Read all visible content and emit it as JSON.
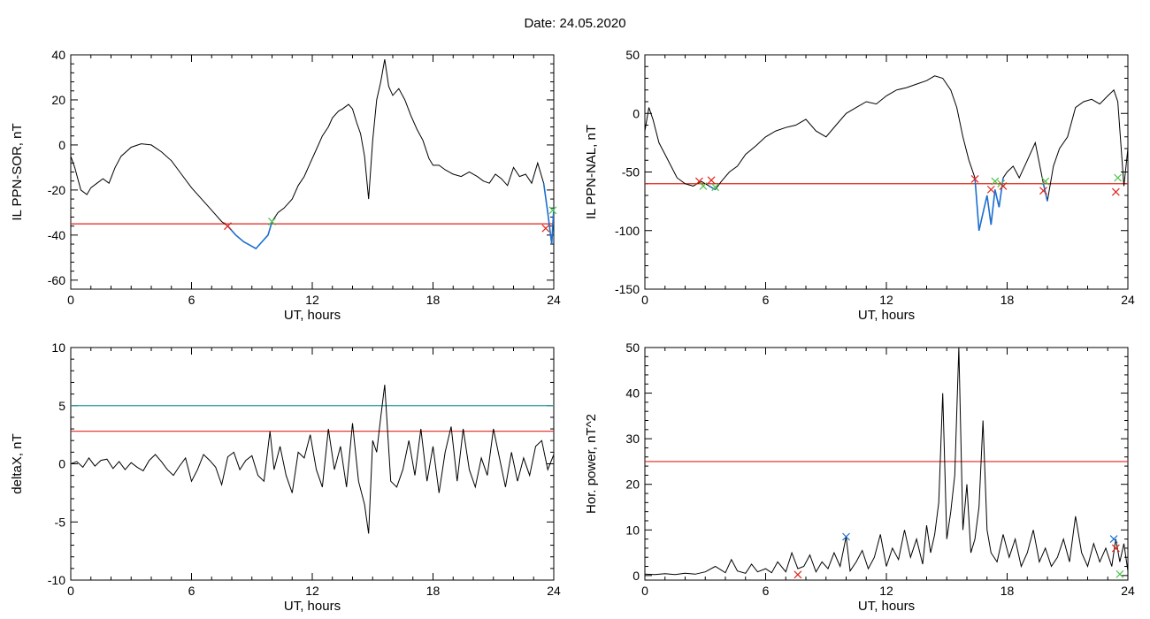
{
  "figure": {
    "title": "Date:  24.05.2020"
  },
  "colors": {
    "data_line": "#000000",
    "threshold_red": "#e0241b",
    "threshold_teal": "#2a9d9b",
    "segment_blue": "#1d6fd1",
    "marker_red": "#e0241b",
    "marker_green": "#4bc24b",
    "marker_blue": "#1d6fd1"
  },
  "chart_data": [
    {
      "type": "line",
      "xlabel": "UT, hours",
      "ylabel": "IL PPN-SOR, nT",
      "xlim": [
        0,
        24
      ],
      "ylim": [
        -64,
        40
      ],
      "xticks": [
        0,
        6,
        12,
        18,
        24
      ],
      "yticks": [
        40,
        20,
        0,
        -20,
        -40,
        -60
      ],
      "threshold_lines": [
        {
          "y": -35,
          "color": "red"
        }
      ],
      "series": [
        {
          "x": [
            0,
            0.2,
            0.5,
            0.8,
            1.0,
            1.3,
            1.6,
            1.9,
            2.2,
            2.5,
            3.0,
            3.5,
            4.0,
            4.5,
            5.0,
            5.5,
            6.0,
            6.5,
            7.0,
            7.5,
            7.8,
            8.2,
            8.6,
            9.0,
            9.2,
            9.5,
            9.8,
            10.0,
            10.3,
            10.6,
            11.0,
            11.3,
            11.6,
            11.9,
            12.2,
            12.5,
            12.8,
            13.0,
            13.3,
            13.5,
            13.8,
            14.0,
            14.2,
            14.4,
            14.6,
            14.8,
            15.0,
            15.2,
            15.4,
            15.6,
            15.8,
            16.0,
            16.3,
            16.6,
            16.9,
            17.2,
            17.5,
            17.8,
            18.0,
            18.3,
            18.6,
            19.0,
            19.4,
            19.8,
            20.2,
            20.5,
            20.8,
            21.1,
            21.4,
            21.7,
            22.0,
            22.3,
            22.6,
            22.9,
            23.2,
            23.5,
            23.7,
            23.9,
            24.0
          ],
          "y": [
            -5,
            -10,
            -20,
            -22,
            -19,
            -17,
            -15,
            -17,
            -10,
            -5,
            -1,
            0.5,
            0,
            -3,
            -7,
            -13,
            -19,
            -24,
            -29,
            -34,
            -36,
            -40,
            -43,
            -45,
            -46,
            -43,
            -40,
            -34,
            -30,
            -28,
            -24,
            -18,
            -14,
            -8,
            -2,
            4,
            8,
            12,
            15,
            16,
            18,
            16,
            10,
            5,
            -5,
            -24,
            2,
            20,
            28,
            38,
            26,
            22,
            25,
            20,
            13,
            7,
            2,
            -6,
            -9,
            -9,
            -11,
            -13,
            -14,
            -12,
            -14,
            -16,
            -17,
            -13,
            -15,
            -18,
            -10,
            -14,
            -13,
            -17,
            -8,
            -17,
            -30,
            -44,
            -28
          ]
        }
      ],
      "highlight_segments": [
        {
          "x_start": 7.8,
          "x_end": 10.0,
          "color": "blue"
        },
        {
          "x_start": 23.5,
          "x_end": 24.0,
          "color": "blue"
        }
      ],
      "markers": [
        {
          "x": 7.8,
          "y": -36,
          "color": "red"
        },
        {
          "x": 10.0,
          "y": -34,
          "color": "green"
        },
        {
          "x": 23.6,
          "y": -37,
          "color": "red"
        },
        {
          "x": 23.95,
          "y": -29,
          "color": "green"
        }
      ]
    },
    {
      "type": "line",
      "xlabel": "UT, hours",
      "ylabel": "IL PPN-NAL, nT",
      "xlim": [
        0,
        24
      ],
      "ylim": [
        -150,
        50
      ],
      "xticks": [
        0,
        6,
        12,
        18,
        24
      ],
      "yticks": [
        50,
        0,
        -50,
        -100,
        -150
      ],
      "threshold_lines": [
        {
          "y": -60,
          "color": "red"
        }
      ],
      "series": [
        {
          "x": [
            0,
            0.2,
            0.4,
            0.7,
            1.0,
            1.3,
            1.6,
            2.0,
            2.4,
            2.8,
            3.2,
            3.5,
            3.8,
            4.2,
            4.6,
            5.0,
            5.5,
            6.0,
            6.5,
            7.0,
            7.5,
            8.0,
            8.5,
            9.0,
            9.5,
            10.0,
            10.5,
            11.0,
            11.5,
            12.0,
            12.5,
            13.0,
            13.5,
            14.0,
            14.4,
            14.8,
            15.2,
            15.5,
            15.8,
            16.1,
            16.4,
            16.6,
            16.8,
            17.0,
            17.2,
            17.4,
            17.6,
            17.8,
            18.0,
            18.3,
            18.6,
            19.0,
            19.4,
            19.8,
            20.0,
            20.3,
            20.6,
            21.0,
            21.4,
            21.8,
            22.2,
            22.6,
            23.0,
            23.3,
            23.5,
            23.8,
            24.0
          ],
          "y": [
            -15,
            5,
            -5,
            -25,
            -35,
            -45,
            -55,
            -60,
            -62,
            -58,
            -62,
            -65,
            -58,
            -50,
            -45,
            -35,
            -28,
            -20,
            -15,
            -12,
            -10,
            -5,
            -15,
            -20,
            -10,
            0,
            5,
            10,
            8,
            15,
            20,
            22,
            25,
            28,
            32,
            30,
            20,
            5,
            -20,
            -40,
            -55,
            -100,
            -85,
            -70,
            -95,
            -65,
            -80,
            -55,
            -50,
            -45,
            -55,
            -40,
            -25,
            -60,
            -75,
            -45,
            -30,
            -20,
            5,
            10,
            12,
            8,
            15,
            20,
            10,
            -62,
            -30
          ]
        }
      ],
      "highlight_segments": [
        {
          "x_start": 3.0,
          "x_end": 3.6,
          "color": "blue"
        },
        {
          "x_start": 16.4,
          "x_end": 17.8,
          "color": "blue"
        },
        {
          "x_start": 19.8,
          "x_end": 20.0,
          "color": "blue"
        }
      ],
      "markers": [
        {
          "x": 2.7,
          "y": -58,
          "color": "red"
        },
        {
          "x": 2.9,
          "y": -62,
          "color": "green"
        },
        {
          "x": 3.3,
          "y": -57,
          "color": "red"
        },
        {
          "x": 3.5,
          "y": -63,
          "color": "green"
        },
        {
          "x": 16.4,
          "y": -56,
          "color": "red"
        },
        {
          "x": 17.2,
          "y": -65,
          "color": "red"
        },
        {
          "x": 17.4,
          "y": -58,
          "color": "green"
        },
        {
          "x": 17.7,
          "y": -60,
          "color": "green"
        },
        {
          "x": 17.8,
          "y": -62,
          "color": "red"
        },
        {
          "x": 19.8,
          "y": -66,
          "color": "red"
        },
        {
          "x": 19.9,
          "y": -58,
          "color": "green"
        },
        {
          "x": 23.4,
          "y": -67,
          "color": "red"
        },
        {
          "x": 23.5,
          "y": -55,
          "color": "green"
        }
      ]
    },
    {
      "type": "line",
      "xlabel": "UT, hours",
      "ylabel": "deltaX, nT",
      "xlim": [
        0,
        24
      ],
      "ylim": [
        -10,
        10
      ],
      "xticks": [
        0,
        6,
        12,
        18,
        24
      ],
      "yticks": [
        10,
        5,
        0,
        -5,
        -10
      ],
      "threshold_lines": [
        {
          "y": 5,
          "color": "teal"
        },
        {
          "y": 2.8,
          "color": "red"
        }
      ],
      "series": [
        {
          "x": [
            0,
            0.3,
            0.6,
            0.9,
            1.2,
            1.5,
            1.8,
            2.1,
            2.4,
            2.7,
            3.0,
            3.3,
            3.6,
            3.9,
            4.2,
            4.5,
            4.8,
            5.1,
            5.4,
            5.7,
            6.0,
            6.3,
            6.6,
            6.9,
            7.2,
            7.5,
            7.8,
            8.1,
            8.4,
            8.7,
            9.0,
            9.3,
            9.6,
            9.9,
            10.1,
            10.4,
            10.7,
            11.0,
            11.3,
            11.6,
            11.9,
            12.2,
            12.5,
            12.8,
            13.1,
            13.4,
            13.7,
            14.0,
            14.3,
            14.6,
            14.8,
            15.0,
            15.2,
            15.4,
            15.6,
            15.9,
            16.2,
            16.5,
            16.8,
            17.1,
            17.4,
            17.7,
            18.0,
            18.3,
            18.6,
            18.9,
            19.2,
            19.5,
            19.8,
            20.1,
            20.4,
            20.7,
            21.0,
            21.3,
            21.6,
            21.9,
            22.2,
            22.5,
            22.8,
            23.1,
            23.4,
            23.7,
            24.0
          ],
          "y": [
            0,
            0.2,
            -0.3,
            0.5,
            -0.2,
            0.3,
            0.4,
            -0.4,
            0.2,
            -0.5,
            0.1,
            -0.3,
            -0.6,
            0.3,
            0.8,
            0.2,
            -0.5,
            -1.0,
            -0.2,
            0.5,
            -1.5,
            -0.5,
            0.8,
            0.3,
            -0.3,
            -1.8,
            0.6,
            1.0,
            -0.5,
            0.3,
            0.7,
            -1.0,
            -1.5,
            2.8,
            -0.5,
            1.5,
            -1.0,
            -2.5,
            1.0,
            0.5,
            2.5,
            -0.5,
            -2.0,
            3.0,
            -0.5,
            1.5,
            -2.0,
            3.5,
            -1.5,
            -3.5,
            -6.0,
            2.0,
            1.0,
            4.0,
            6.8,
            -1.5,
            -2.0,
            -0.5,
            2.0,
            -1.0,
            3.0,
            -1.5,
            1.5,
            -2.5,
            1.0,
            3.2,
            -1.5,
            3.0,
            -0.5,
            -2.0,
            0.5,
            -1.0,
            3.0,
            0.5,
            -2.0,
            1.0,
            -1.5,
            0.5,
            -1.0,
            1.5,
            2.0,
            -0.5,
            0.8
          ]
        }
      ],
      "highlight_segments": [],
      "markers": []
    },
    {
      "type": "line",
      "xlabel": "UT, hours",
      "ylabel": "Hor. power, nT^2",
      "xlim": [
        0,
        24
      ],
      "ylim": [
        -1,
        50
      ],
      "xticks": [
        0,
        6,
        12,
        18,
        24
      ],
      "yticks": [
        50,
        40,
        30,
        20,
        10,
        0
      ],
      "threshold_lines": [
        {
          "y": 25,
          "color": "red"
        }
      ],
      "series": [
        {
          "x": [
            0,
            0.5,
            1.0,
            1.5,
            2.0,
            2.5,
            3.0,
            3.5,
            4.0,
            4.3,
            4.6,
            5.0,
            5.3,
            5.6,
            6.0,
            6.3,
            6.6,
            7.0,
            7.3,
            7.6,
            7.9,
            8.2,
            8.5,
            8.8,
            9.1,
            9.4,
            9.7,
            10.0,
            10.2,
            10.5,
            10.8,
            11.1,
            11.4,
            11.7,
            12.0,
            12.3,
            12.6,
            12.9,
            13.2,
            13.5,
            13.8,
            14.0,
            14.2,
            14.4,
            14.6,
            14.8,
            15.0,
            15.2,
            15.4,
            15.6,
            15.8,
            16.0,
            16.2,
            16.4,
            16.6,
            16.8,
            17.0,
            17.2,
            17.5,
            17.8,
            18.1,
            18.4,
            18.7,
            19.0,
            19.3,
            19.6,
            19.9,
            20.2,
            20.5,
            20.8,
            21.1,
            21.4,
            21.7,
            22.0,
            22.3,
            22.6,
            22.9,
            23.2,
            23.4,
            23.6,
            23.8,
            24.0
          ],
          "y": [
            0.3,
            0.2,
            0.4,
            0.2,
            0.5,
            0.3,
            0.8,
            2.0,
            0.6,
            3.5,
            1.0,
            0.5,
            2.5,
            0.8,
            1.5,
            0.6,
            3.0,
            0.8,
            5.0,
            1.5,
            2.0,
            4.5,
            0.8,
            3.0,
            1.5,
            5.0,
            2.0,
            8.5,
            1.0,
            3.0,
            5.5,
            1.5,
            4.0,
            9.0,
            2.0,
            6.0,
            3.5,
            10.0,
            4.0,
            8.0,
            2.5,
            11.0,
            5.0,
            9.0,
            16.0,
            40.0,
            8.0,
            14.0,
            22.0,
            50.0,
            10.0,
            20.0,
            5.0,
            8.0,
            15.0,
            34.0,
            10.0,
            5.0,
            3.0,
            9.0,
            4.0,
            8.0,
            2.0,
            5.0,
            10.0,
            3.0,
            6.0,
            2.0,
            4.0,
            8.0,
            3.0,
            13.0,
            5.0,
            2.0,
            7.0,
            3.0,
            6.0,
            2.0,
            8.0,
            3.0,
            7.0,
            1.0
          ]
        }
      ],
      "highlight_segments": [],
      "markers": [
        {
          "x": 7.6,
          "y": 0.2,
          "color": "red"
        },
        {
          "x": 10.0,
          "y": 8.5,
          "color": "blue"
        },
        {
          "x": 23.3,
          "y": 8.0,
          "color": "blue"
        },
        {
          "x": 23.4,
          "y": 6.0,
          "color": "red"
        },
        {
          "x": 23.6,
          "y": 0.3,
          "color": "green"
        }
      ]
    }
  ]
}
